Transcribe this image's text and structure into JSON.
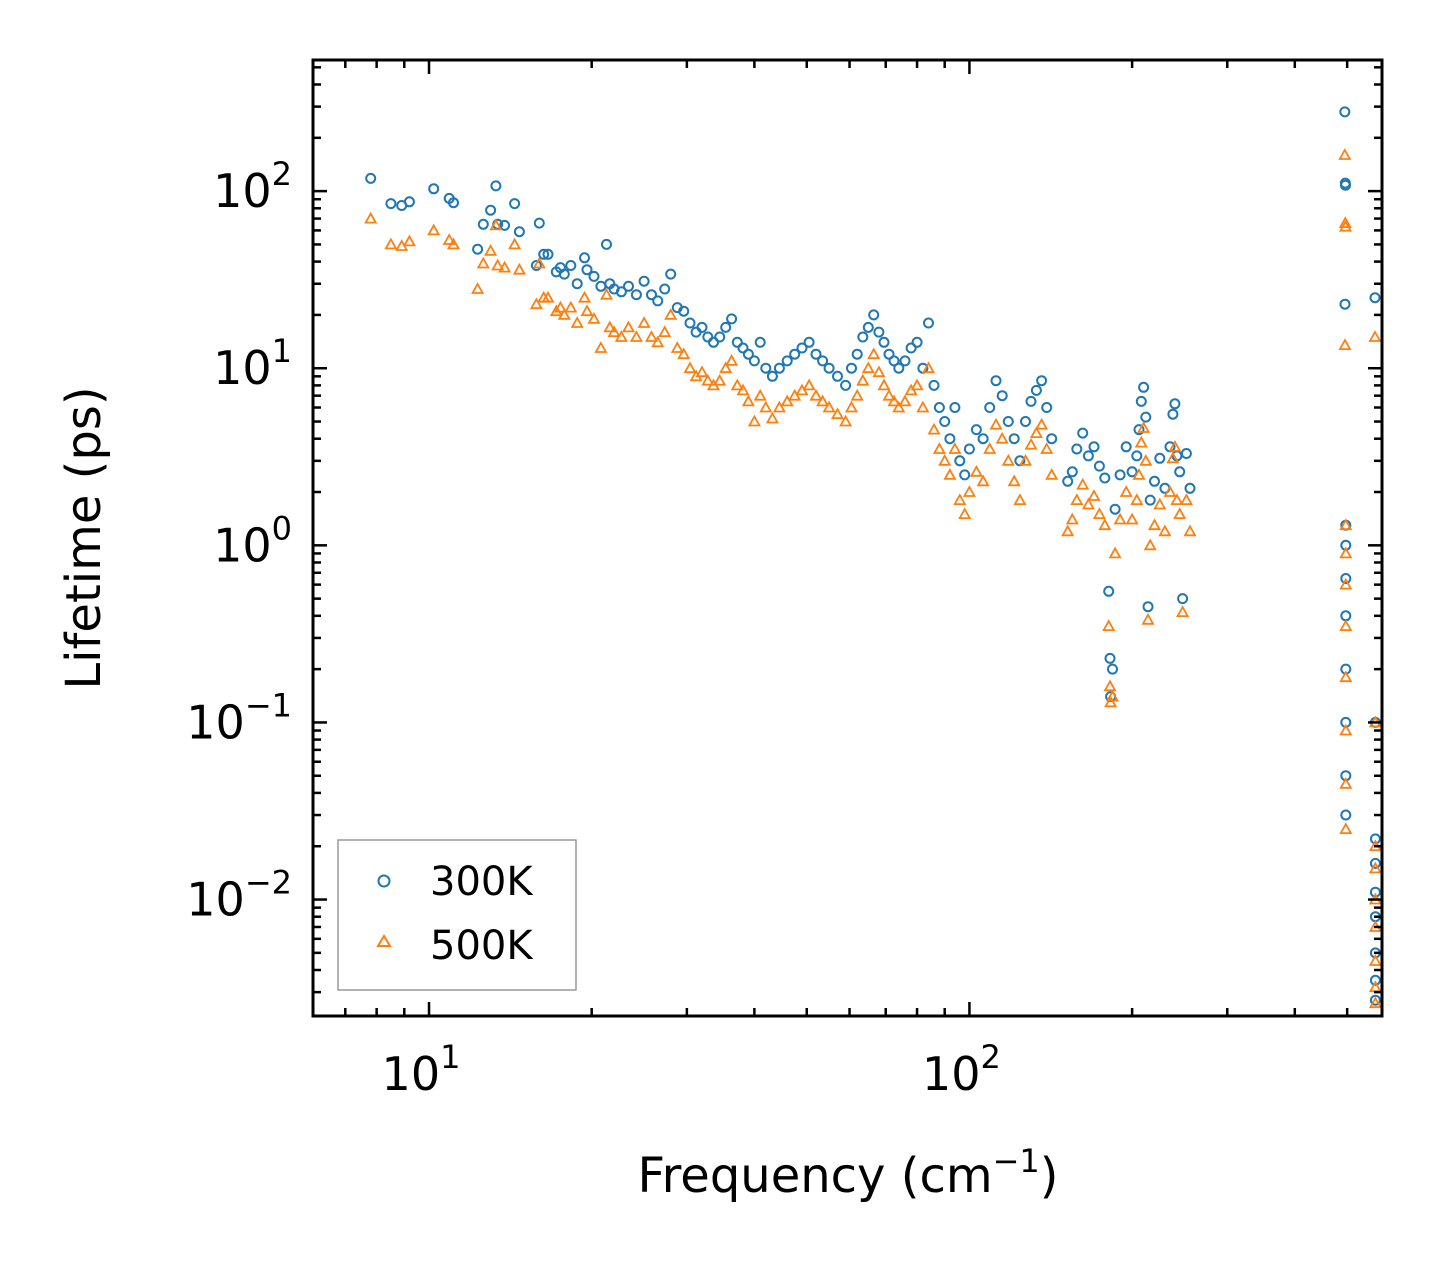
{
  "chart_data": {
    "type": "scatter",
    "x_scale": "log",
    "y_scale": "log",
    "xlim": [
      6.1,
      580
    ],
    "ylim": [
      0.0022,
      550
    ],
    "xlabel": "Frequency (cm",
    "xlabel_exp": "−1",
    "xlabel_close": ")",
    "ylabel": "Lifetime (ps)",
    "x_ticks": [
      {
        "value": 10,
        "base": "10",
        "exp": "1"
      },
      {
        "value": 100,
        "base": "10",
        "exp": "2"
      }
    ],
    "y_ticks": [
      {
        "value": 100,
        "base": "10",
        "exp": "2"
      },
      {
        "value": 10,
        "base": "10",
        "exp": "1"
      },
      {
        "value": 1,
        "base": "10",
        "exp": "0"
      },
      {
        "value": 0.1,
        "base": "10",
        "exp": "−1"
      },
      {
        "value": 0.01,
        "base": "10",
        "exp": "−2"
      }
    ],
    "legend_position": "lower-left",
    "series": [
      {
        "name": "300K",
        "marker": "circle",
        "color": "#1f77b4",
        "points": [
          [
            7.8,
            118
          ],
          [
            8.5,
            85
          ],
          [
            8.9,
            83
          ],
          [
            9.2,
            87
          ],
          [
            10.2,
            103
          ],
          [
            10.9,
            91
          ],
          [
            11.1,
            86
          ],
          [
            12.3,
            47
          ],
          [
            12.6,
            65
          ],
          [
            13.0,
            78
          ],
          [
            13.3,
            107
          ],
          [
            13.4,
            65
          ],
          [
            13.8,
            64
          ],
          [
            14.4,
            85
          ],
          [
            14.7,
            59
          ],
          [
            15.8,
            38
          ],
          [
            16.0,
            66
          ],
          [
            16.3,
            44
          ],
          [
            16.6,
            44
          ],
          [
            17.2,
            35
          ],
          [
            17.5,
            37
          ],
          [
            17.8,
            34
          ],
          [
            18.3,
            38
          ],
          [
            18.8,
            30
          ],
          [
            19.4,
            42
          ],
          [
            19.6,
            36
          ],
          [
            20.2,
            33
          ],
          [
            20.8,
            29
          ],
          [
            21.3,
            50
          ],
          [
            21.6,
            30
          ],
          [
            22.0,
            28
          ],
          [
            22.7,
            27
          ],
          [
            23.4,
            29
          ],
          [
            24.2,
            26
          ],
          [
            25.0,
            31
          ],
          [
            25.8,
            26
          ],
          [
            26.5,
            24
          ],
          [
            27.3,
            28
          ],
          [
            28.0,
            34
          ],
          [
            28.8,
            22
          ],
          [
            29.6,
            21
          ],
          [
            30.4,
            18
          ],
          [
            31.2,
            16
          ],
          [
            32.0,
            17
          ],
          [
            32.8,
            15
          ],
          [
            33.6,
            14
          ],
          [
            34.5,
            15
          ],
          [
            35.4,
            17
          ],
          [
            36.3,
            19
          ],
          [
            37.2,
            14
          ],
          [
            38.1,
            13
          ],
          [
            39.0,
            12
          ],
          [
            40.0,
            11
          ],
          [
            41.0,
            14
          ],
          [
            42.0,
            10
          ],
          [
            43.2,
            9
          ],
          [
            44.5,
            10
          ],
          [
            46.0,
            11
          ],
          [
            47.5,
            12
          ],
          [
            49.0,
            13
          ],
          [
            50.5,
            14
          ],
          [
            52.0,
            12
          ],
          [
            53.5,
            11
          ],
          [
            55.0,
            10
          ],
          [
            57.0,
            9
          ],
          [
            59.0,
            8
          ],
          [
            60.5,
            10
          ],
          [
            62.0,
            12
          ],
          [
            63.5,
            15
          ],
          [
            65.0,
            17
          ],
          [
            66.5,
            20
          ],
          [
            68.0,
            16
          ],
          [
            69.5,
            14
          ],
          [
            71.0,
            12
          ],
          [
            72.5,
            11
          ],
          [
            74.0,
            10
          ],
          [
            76.0,
            11
          ],
          [
            78.0,
            13
          ],
          [
            80.0,
            14
          ],
          [
            82.0,
            10
          ],
          [
            84.0,
            18
          ],
          [
            86.0,
            8
          ],
          [
            88.0,
            6
          ],
          [
            90.0,
            5
          ],
          [
            92.0,
            4
          ],
          [
            94.0,
            6
          ],
          [
            96.0,
            3
          ],
          [
            98.0,
            2.5
          ],
          [
            100.0,
            3.5
          ],
          [
            103.0,
            4.5
          ],
          [
            106.0,
            4
          ],
          [
            109.0,
            6
          ],
          [
            112.0,
            8.5
          ],
          [
            115.0,
            7
          ],
          [
            118.0,
            5
          ],
          [
            121.0,
            4
          ],
          [
            124.0,
            3
          ],
          [
            127.0,
            5
          ],
          [
            130.0,
            6.5
          ],
          [
            133.0,
            7.5
          ],
          [
            136.0,
            8.5
          ],
          [
            139.0,
            6
          ],
          [
            142.0,
            4
          ],
          [
            152.0,
            2.3
          ],
          [
            155.0,
            2.6
          ],
          [
            158.0,
            3.5
          ],
          [
            162.0,
            4.3
          ],
          [
            166.0,
            3.2
          ],
          [
            170.0,
            3.6
          ],
          [
            174.0,
            2.8
          ],
          [
            178.0,
            2.4
          ],
          [
            181.0,
            0.55
          ],
          [
            182.0,
            0.23
          ],
          [
            182.5,
            0.14
          ],
          [
            184.0,
            0.2
          ],
          [
            186.0,
            1.6
          ],
          [
            190.0,
            2.5
          ],
          [
            195.0,
            3.6
          ],
          [
            200.0,
            2.6
          ],
          [
            204.0,
            3.2
          ],
          [
            206.0,
            4.5
          ],
          [
            208.0,
            6.5
          ],
          [
            210.0,
            7.8
          ],
          [
            212.0,
            5.3
          ],
          [
            214.0,
            0.45
          ],
          [
            216.0,
            1.8
          ],
          [
            220.0,
            2.3
          ],
          [
            225.0,
            3.1
          ],
          [
            230.0,
            2.1
          ],
          [
            235.0,
            3.6
          ],
          [
            238.0,
            5.5
          ],
          [
            240.0,
            6.3
          ],
          [
            242.0,
            3.2
          ],
          [
            245.0,
            2.6
          ],
          [
            248.0,
            0.5
          ],
          [
            252.0,
            3.3
          ],
          [
            256.0,
            2.1
          ],
          [
            495,
            280
          ],
          [
            496,
            111
          ],
          [
            496.5,
            108
          ],
          [
            495.5,
            23
          ],
          [
            497,
            1.3
          ],
          [
            497,
            1.0
          ],
          [
            497,
            0.65
          ],
          [
            497,
            0.4
          ],
          [
            497,
            0.2
          ],
          [
            497,
            0.1
          ],
          [
            497,
            0.05
          ],
          [
            497,
            0.03
          ],
          [
            563,
            25
          ],
          [
            564,
            0.1
          ],
          [
            564,
            0.022
          ],
          [
            564,
            0.016
          ],
          [
            564,
            0.011
          ],
          [
            564,
            0.008
          ],
          [
            564,
            0.005
          ],
          [
            564,
            0.0035
          ],
          [
            564,
            0.0027
          ]
        ]
      },
      {
        "name": "500K",
        "marker": "triangle",
        "color": "#ff7f0e",
        "points": [
          [
            7.8,
            70
          ],
          [
            8.5,
            50
          ],
          [
            8.9,
            49
          ],
          [
            9.2,
            52
          ],
          [
            10.2,
            60
          ],
          [
            10.9,
            53
          ],
          [
            11.1,
            50
          ],
          [
            12.3,
            28
          ],
          [
            12.6,
            39
          ],
          [
            13.0,
            46
          ],
          [
            13.3,
            64
          ],
          [
            13.4,
            38
          ],
          [
            13.8,
            37
          ],
          [
            14.4,
            50
          ],
          [
            14.7,
            36
          ],
          [
            15.8,
            23
          ],
          [
            16.0,
            39
          ],
          [
            16.3,
            25
          ],
          [
            16.6,
            25
          ],
          [
            17.2,
            21
          ],
          [
            17.5,
            22
          ],
          [
            17.8,
            20
          ],
          [
            18.3,
            22
          ],
          [
            18.8,
            18
          ],
          [
            19.4,
            25
          ],
          [
            19.6,
            21
          ],
          [
            20.2,
            19
          ],
          [
            20.8,
            13
          ],
          [
            21.3,
            26
          ],
          [
            21.6,
            17
          ],
          [
            22.0,
            16
          ],
          [
            22.7,
            15
          ],
          [
            23.4,
            17
          ],
          [
            24.2,
            15
          ],
          [
            25.0,
            18
          ],
          [
            25.8,
            15
          ],
          [
            26.5,
            14
          ],
          [
            27.3,
            16
          ],
          [
            28.0,
            20
          ],
          [
            28.8,
            13
          ],
          [
            29.6,
            12
          ],
          [
            30.4,
            10
          ],
          [
            31.2,
            9
          ],
          [
            32.0,
            9.5
          ],
          [
            32.8,
            8.5
          ],
          [
            33.6,
            8
          ],
          [
            34.5,
            8.5
          ],
          [
            35.4,
            10
          ],
          [
            36.3,
            11
          ],
          [
            37.2,
            8
          ],
          [
            38.1,
            7.5
          ],
          [
            39.0,
            6.5
          ],
          [
            40.0,
            5
          ],
          [
            41.0,
            7
          ],
          [
            42.0,
            6
          ],
          [
            43.2,
            5.2
          ],
          [
            44.5,
            6
          ],
          [
            46.0,
            6.5
          ],
          [
            47.5,
            7
          ],
          [
            49.0,
            7.5
          ],
          [
            50.5,
            8
          ],
          [
            52.0,
            7
          ],
          [
            53.5,
            6.5
          ],
          [
            55.0,
            6
          ],
          [
            57.0,
            5.5
          ],
          [
            59.0,
            5
          ],
          [
            60.5,
            6
          ],
          [
            62.0,
            7
          ],
          [
            63.5,
            8.5
          ],
          [
            65.0,
            10
          ],
          [
            66.5,
            12
          ],
          [
            68.0,
            9.5
          ],
          [
            69.5,
            8
          ],
          [
            71.0,
            7
          ],
          [
            72.5,
            6.5
          ],
          [
            74.0,
            6
          ],
          [
            76.0,
            6.5
          ],
          [
            78.0,
            7.5
          ],
          [
            80.0,
            8
          ],
          [
            82.0,
            6
          ],
          [
            84.0,
            10
          ],
          [
            86.0,
            4.5
          ],
          [
            88.0,
            3.5
          ],
          [
            90.0,
            3
          ],
          [
            92.0,
            2.5
          ],
          [
            94.0,
            3.5
          ],
          [
            96.0,
            1.8
          ],
          [
            98.0,
            1.5
          ],
          [
            100.0,
            2
          ],
          [
            103.0,
            2.6
          ],
          [
            106.0,
            2.3
          ],
          [
            109.0,
            3.5
          ],
          [
            112.0,
            4.8
          ],
          [
            115.0,
            4
          ],
          [
            118.0,
            3
          ],
          [
            121.0,
            2.3
          ],
          [
            124.0,
            1.8
          ],
          [
            127.0,
            3
          ],
          [
            130.0,
            3.7
          ],
          [
            133.0,
            4.3
          ],
          [
            136.0,
            4.8
          ],
          [
            139.0,
            3.5
          ],
          [
            142.0,
            2.5
          ],
          [
            152.0,
            1.2
          ],
          [
            155.0,
            1.4
          ],
          [
            158.0,
            1.8
          ],
          [
            162.0,
            2.2
          ],
          [
            166.0,
            1.7
          ],
          [
            170.0,
            1.9
          ],
          [
            174.0,
            1.5
          ],
          [
            178.0,
            1.3
          ],
          [
            181.0,
            0.35
          ],
          [
            182.0,
            0.16
          ],
          [
            182.5,
            0.13
          ],
          [
            184.0,
            0.14
          ],
          [
            186.0,
            0.9
          ],
          [
            190.0,
            1.4
          ],
          [
            195.0,
            2.0
          ],
          [
            200.0,
            1.4
          ],
          [
            204.0,
            1.8
          ],
          [
            206.0,
            2.5
          ],
          [
            208.0,
            3.8
          ],
          [
            210.0,
            4.6
          ],
          [
            212.0,
            3.0
          ],
          [
            214.0,
            0.38
          ],
          [
            216.0,
            1.0
          ],
          [
            220.0,
            1.3
          ],
          [
            225.0,
            1.7
          ],
          [
            230.0,
            1.2
          ],
          [
            235.0,
            2.0
          ],
          [
            238.0,
            3.1
          ],
          [
            240.0,
            3.6
          ],
          [
            242.0,
            1.8
          ],
          [
            245.0,
            1.5
          ],
          [
            248.0,
            0.42
          ],
          [
            252.0,
            1.8
          ],
          [
            256.0,
            1.2
          ],
          [
            495,
            160
          ],
          [
            496,
            66
          ],
          [
            496.5,
            63
          ],
          [
            495.5,
            13.5
          ],
          [
            497,
            1.3
          ],
          [
            497,
            0.9
          ],
          [
            497,
            0.6
          ],
          [
            497,
            0.35
          ],
          [
            497,
            0.18
          ],
          [
            497,
            0.09
          ],
          [
            497,
            0.045
          ],
          [
            497,
            0.025
          ],
          [
            563,
            15
          ],
          [
            564,
            0.1
          ],
          [
            564,
            0.02
          ],
          [
            564,
            0.015
          ],
          [
            564,
            0.01
          ],
          [
            564,
            0.007
          ],
          [
            564,
            0.0045
          ],
          [
            564,
            0.0032
          ],
          [
            564,
            0.0026
          ]
        ]
      }
    ]
  }
}
